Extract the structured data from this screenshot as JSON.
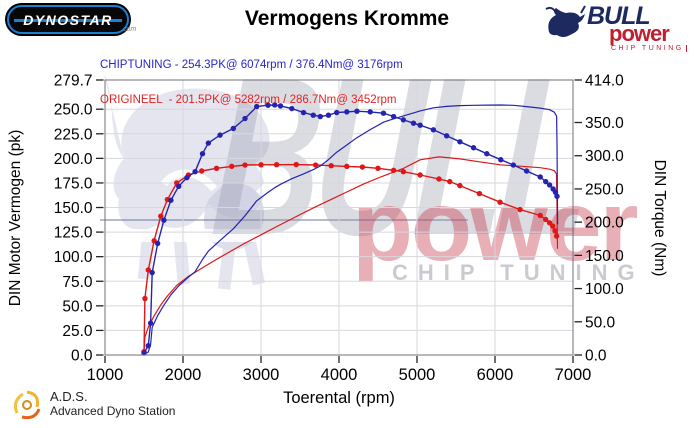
{
  "colors": {
    "chiptuning": "#2424b0",
    "origineel": "#df1717",
    "legend_blue": "#2525cd",
    "legend_red": "#e32222",
    "grid": "#d7d7de",
    "plot_border": "#6f6f78",
    "tick": "#222222",
    "dynostar_blue": "#1e7ed2",
    "bull_navy": "#1c2a60",
    "bull_red": "#c01f2f",
    "watermark_gray": "rgba(146,149,168,0.33)",
    "watermark_red": "rgba(201,55,75,0.40)"
  },
  "header": {
    "dynostar_text": "DYNOSTAR",
    "dynostar_sub": ".com",
    "title": "Vermogens Kromme",
    "bull_logo": {
      "bull": "BULL",
      "power": "power",
      "chip": "CHIP TUNING"
    }
  },
  "legend": {
    "chiptuning": "CHIPTUNING - 254.3PK@ 6074rpm / 376.4Nm@ 3176rpm",
    "origineel": "ORIGINEEL  - 201.5PK@ 5282rpm / 286.7Nm@ 3452rpm"
  },
  "watermark": {
    "bull": "BULL",
    "power": "power",
    "chip": "CHIP TUNING"
  },
  "footer": {
    "ads_title": "A.D.S.",
    "ads_subtitle": "Advanced Dyno Station"
  },
  "chart_data": {
    "type": "line",
    "title": "Vermogens Kromme",
    "xlabel": "Toerental (rpm)",
    "ylabel_left": "DIN Motor Vermogen (pk)",
    "ylabel_right": "DIN Torque (Nm)",
    "xlim": [
      1000,
      7000
    ],
    "ylim_left": [
      0,
      279.7
    ],
    "ylim_right": [
      0,
      414
    ],
    "x_ticks": [
      1000,
      2000,
      3000,
      4000,
      5000,
      6000,
      7000
    ],
    "y_ticks_left": [
      279.7,
      250.0,
      225.0,
      200.0,
      175.0,
      150.0,
      125.0,
      100.0,
      75.0,
      50.0,
      25.0,
      0.0
    ],
    "y_ticks_right": [
      414.0,
      350.0,
      300.0,
      250.0,
      200.0,
      150.0,
      100.0,
      50.0,
      0.0
    ],
    "grid": true,
    "legend_position": "above-plot-left",
    "series": [
      {
        "name": "ORIGINEEL vermogen",
        "unit": "pk",
        "axis": "left",
        "color": "#df1717",
        "marker": false,
        "peak": {
          "value": 201.5,
          "rpm": 5282
        },
        "points": [
          [
            1500,
            1.1
          ],
          [
            1512,
            18.3
          ],
          [
            1555,
            28.3
          ],
          [
            1630,
            39.9
          ],
          [
            1715,
            51.0
          ],
          [
            1800,
            60.0
          ],
          [
            1920,
            70.8
          ],
          [
            2070,
            79.9
          ],
          [
            2240,
            88.3
          ],
          [
            2430,
            97.2
          ],
          [
            2625,
            106.2
          ],
          [
            2795,
            113.8
          ],
          [
            3000,
            122.3
          ],
          [
            3200,
            130.6
          ],
          [
            3452,
            140.9
          ],
          [
            3700,
            150.7
          ],
          [
            3900,
            158.3
          ],
          [
            4100,
            165.8
          ],
          [
            4300,
            173.3
          ],
          [
            4500,
            180.0
          ],
          [
            4700,
            186.0
          ],
          [
            4825,
            189.8
          ],
          [
            5040,
            198.5
          ],
          [
            5282,
            201.5
          ],
          [
            5420,
            200.5
          ],
          [
            5550,
            199.5
          ],
          [
            5800,
            196.5
          ],
          [
            6065,
            193.5
          ],
          [
            6320,
            192.0
          ],
          [
            6580,
            190.5
          ],
          [
            6700,
            189.0
          ],
          [
            6760,
            187.5
          ],
          [
            6788,
            184.0
          ],
          [
            6794,
            160.0
          ],
          [
            6799,
            122.0
          ],
          [
            6801,
            108.0
          ]
        ]
      },
      {
        "name": "ORIGINEEL koppel",
        "unit": "Nm",
        "axis": "right",
        "color": "#df1717",
        "marker": true,
        "peak": {
          "value": 286.7,
          "rpm": 3452
        },
        "points": [
          [
            1500,
            5
          ],
          [
            1512,
            85
          ],
          [
            1555,
            128
          ],
          [
            1630,
            172
          ],
          [
            1715,
            209
          ],
          [
            1800,
            234
          ],
          [
            1920,
            259
          ],
          [
            2070,
            271
          ],
          [
            2240,
            277
          ],
          [
            2430,
            281
          ],
          [
            2625,
            284
          ],
          [
            2795,
            286
          ],
          [
            3000,
            286.3
          ],
          [
            3200,
            286.5
          ],
          [
            3452,
            286.7
          ],
          [
            3700,
            286
          ],
          [
            3900,
            285
          ],
          [
            4100,
            284
          ],
          [
            4300,
            283
          ],
          [
            4500,
            281
          ],
          [
            4700,
            278
          ],
          [
            4825,
            276
          ],
          [
            5040,
            271
          ],
          [
            5282,
            265
          ],
          [
            5420,
            261
          ],
          [
            5550,
            255
          ],
          [
            5800,
            243
          ],
          [
            6065,
            230
          ],
          [
            6320,
            219
          ],
          [
            6580,
            210
          ],
          [
            6650,
            204
          ],
          [
            6700,
            199
          ],
          [
            6740,
            194
          ],
          [
            6770,
            187
          ],
          [
            6790,
            179
          ]
        ]
      },
      {
        "name": "CHIPTUNING vermogen",
        "unit": "pk",
        "axis": "left",
        "color": "#2424b0",
        "marker": false,
        "peak": {
          "value": 254.3,
          "rpm": 6074
        },
        "points": [
          [
            1500,
            0.6
          ],
          [
            1555,
            3.1
          ],
          [
            1585,
            10.8
          ],
          [
            1605,
            28.3
          ],
          [
            1675,
            40.1
          ],
          [
            1755,
            50.7
          ],
          [
            1845,
            61.2
          ],
          [
            1945,
            70.3
          ],
          [
            2050,
            77.9
          ],
          [
            2155,
            84.7
          ],
          [
            2250,
            97.1
          ],
          [
            2325,
            105.6
          ],
          [
            2475,
            116.6
          ],
          [
            2645,
            128.4
          ],
          [
            2795,
            141.6
          ],
          [
            2945,
            156.8
          ],
          [
            3090,
            165.4
          ],
          [
            3176,
            170.2
          ],
          [
            3250,
            173.6
          ],
          [
            3395,
            179.3
          ],
          [
            3545,
            184.2
          ],
          [
            3670,
            188.6
          ],
          [
            3760,
            192.2
          ],
          [
            3865,
            198.7
          ],
          [
            3970,
            206.3
          ],
          [
            4100,
            213.6
          ],
          [
            4230,
            221.0
          ],
          [
            4400,
            229.3
          ],
          [
            4570,
            236.8
          ],
          [
            4700,
            240.2
          ],
          [
            4825,
            243.2
          ],
          [
            4955,
            246.2
          ],
          [
            5040,
            248.3
          ],
          [
            5210,
            251.4
          ],
          [
            5380,
            252.8
          ],
          [
            5550,
            253.7
          ],
          [
            5725,
            254.0
          ],
          [
            5895,
            254.2
          ],
          [
            6074,
            254.3
          ],
          [
            6235,
            254.0
          ],
          [
            6405,
            252.6
          ],
          [
            6580,
            251.1
          ],
          [
            6700,
            249.5
          ],
          [
            6760,
            247.0
          ],
          [
            6790,
            243.0
          ],
          [
            6795,
            215.0
          ],
          [
            6800,
            160.0
          ],
          [
            6802,
            133.0
          ]
        ]
      },
      {
        "name": "CHIPTUNING koppel",
        "unit": "Nm",
        "axis": "right",
        "color": "#2424b0",
        "marker": true,
        "peak": {
          "value": 376.4,
          "rpm": 3176
        },
        "points": [
          [
            1500,
            3
          ],
          [
            1555,
            14
          ],
          [
            1585,
            48
          ],
          [
            1605,
            124
          ],
          [
            1675,
            168
          ],
          [
            1755,
            203
          ],
          [
            1845,
            233
          ],
          [
            1945,
            254
          ],
          [
            2050,
            267
          ],
          [
            2155,
            276
          ],
          [
            2250,
            303
          ],
          [
            2325,
            319
          ],
          [
            2475,
            331
          ],
          [
            2645,
            341
          ],
          [
            2795,
            356
          ],
          [
            2945,
            374
          ],
          [
            3090,
            376
          ],
          [
            3176,
            376.4
          ],
          [
            3250,
            375
          ],
          [
            3395,
            371
          ],
          [
            3545,
            365
          ],
          [
            3670,
            361
          ],
          [
            3760,
            359
          ],
          [
            3865,
            361
          ],
          [
            3970,
            365
          ],
          [
            4100,
            366
          ],
          [
            4230,
            367
          ],
          [
            4400,
            366
          ],
          [
            4570,
            364
          ],
          [
            4700,
            359
          ],
          [
            4825,
            354
          ],
          [
            4955,
            349
          ],
          [
            5040,
            346
          ],
          [
            5210,
            339
          ],
          [
            5380,
            330
          ],
          [
            5550,
            321
          ],
          [
            5725,
            312
          ],
          [
            5895,
            303
          ],
          [
            6074,
            294
          ],
          [
            6235,
            286
          ],
          [
            6405,
            277
          ],
          [
            6580,
            268
          ],
          [
            6650,
            261
          ],
          [
            6700,
            256
          ],
          [
            6745,
            250
          ],
          [
            6775,
            245
          ],
          [
            6795,
            239
          ]
        ]
      }
    ]
  }
}
